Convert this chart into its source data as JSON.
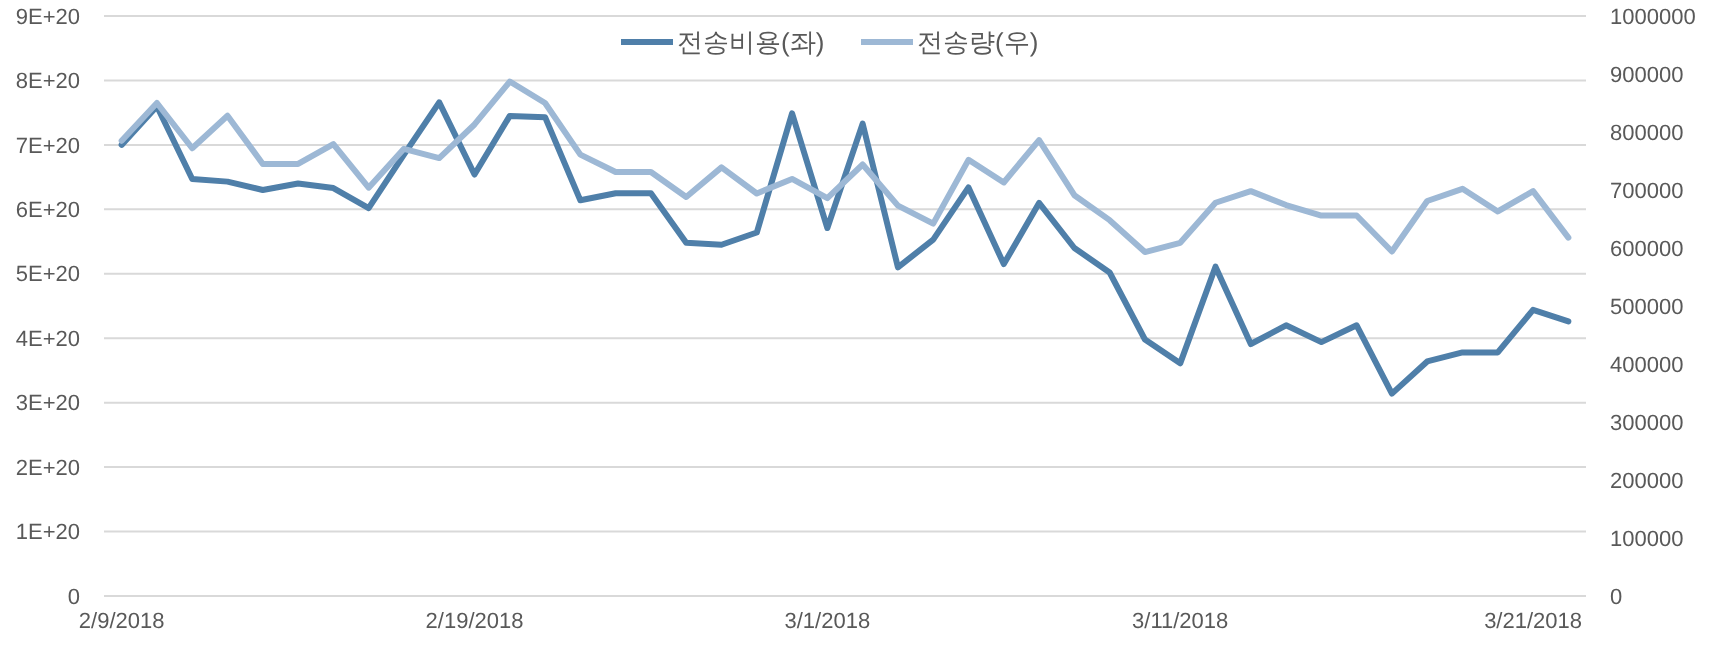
{
  "chart_data": {
    "type": "line",
    "x": [
      "2018-02-09",
      "2018-02-10",
      "2018-02-11",
      "2018-02-12",
      "2018-02-13",
      "2018-02-14",
      "2018-02-15",
      "2018-02-16",
      "2018-02-17",
      "2018-02-18",
      "2018-02-19",
      "2018-02-20",
      "2018-02-21",
      "2018-02-22",
      "2018-02-23",
      "2018-02-24",
      "2018-02-25",
      "2018-02-26",
      "2018-02-27",
      "2018-02-28",
      "2018-03-01",
      "2018-03-02",
      "2018-03-03",
      "2018-03-04",
      "2018-03-05",
      "2018-03-06",
      "2018-03-07",
      "2018-03-08",
      "2018-03-09",
      "2018-03-10",
      "2018-03-11",
      "2018-03-12",
      "2018-03-13",
      "2018-03-14",
      "2018-03-15",
      "2018-03-16",
      "2018-03-17",
      "2018-03-18",
      "2018-03-19",
      "2018-03-20",
      "2018-03-21",
      "2018-03-22"
    ],
    "series": [
      {
        "name": "전송비용(좌)",
        "color": "#4f7fa9",
        "values": [
          7e+20,
          7.6e+20,
          6.47e+20,
          6.43e+20,
          6.3e+20,
          6.4e+20,
          6.33e+20,
          6.02e+20,
          6.85e+20,
          7.66e+20,
          6.54e+20,
          7.45e+20,
          7.43e+20,
          6.14e+20,
          6.25e+20,
          6.25e+20,
          5.48e+20,
          5.45e+20,
          5.64e+20,
          7.49e+20,
          5.71e+20,
          7.33e+20,
          5.1e+20,
          5.53e+20,
          6.34e+20,
          5.15e+20,
          6.1e+20,
          5.4e+20,
          5.02e+20,
          3.98e+20,
          3.61e+20,
          5.11e+20,
          3.91e+20,
          4.2e+20,
          3.94e+20,
          4.2e+20,
          3.14e+20,
          3.64e+20,
          3.78e+20,
          3.78e+20,
          4.44e+20,
          4.26e+20
        ]
      },
      {
        "name": "전송량(우)",
        "color": "#9db8d5",
        "axis": "y2",
        "values": [
          785000,
          850000,
          772000,
          828000,
          745000,
          745000,
          779000,
          704000,
          771000,
          755000,
          813000,
          887000,
          850000,
          761000,
          731000,
          731000,
          688000,
          739000,
          694000,
          719000,
          686000,
          744000,
          673000,
          642000,
          752000,
          713000,
          786000,
          691000,
          648000,
          593000,
          609000,
          678000,
          698000,
          674000,
          656000,
          656000,
          594000,
          681000,
          702000,
          663000,
          698000,
          618000
        ]
      }
    ],
    "xlim": [
      "2018-02-08T12:00",
      "2018-03-22T12:00"
    ],
    "xticks": [
      {
        "value": "2018-02-09",
        "label": "2/9/2018"
      },
      {
        "value": "2018-02-19",
        "label": "2/19/2018"
      },
      {
        "value": "2018-03-01",
        "label": "3/1/2018"
      },
      {
        "value": "2018-03-11",
        "label": "3/11/2018"
      },
      {
        "value": "2018-03-21",
        "label": "3/21/2018"
      }
    ],
    "ylim": [
      0,
      9e+20
    ],
    "yticks": [
      0,
      {
        "value": 1e+20,
        "label": "1E+20"
      },
      {
        "value": 2e+20,
        "label": "2E+20"
      },
      {
        "value": 3e+20,
        "label": "3E+20"
      },
      {
        "value": 4e+20,
        "label": "4E+20"
      },
      {
        "value": 5e+20,
        "label": "5E+20"
      },
      {
        "value": 6e+20,
        "label": "6E+20"
      },
      {
        "value": 7e+20,
        "label": "7E+20"
      },
      {
        "value": 8e+20,
        "label": "8E+20"
      },
      {
        "value": 9e+20,
        "label": "9E+20"
      }
    ],
    "y2lim": [
      0,
      1000000
    ],
    "y2ticks": [
      0,
      100000,
      200000,
      300000,
      400000,
      500000,
      600000,
      700000,
      800000,
      900000,
      1000000
    ],
    "grid": "y",
    "legend": "top",
    "marker": "none",
    "line_style": "solid"
  }
}
